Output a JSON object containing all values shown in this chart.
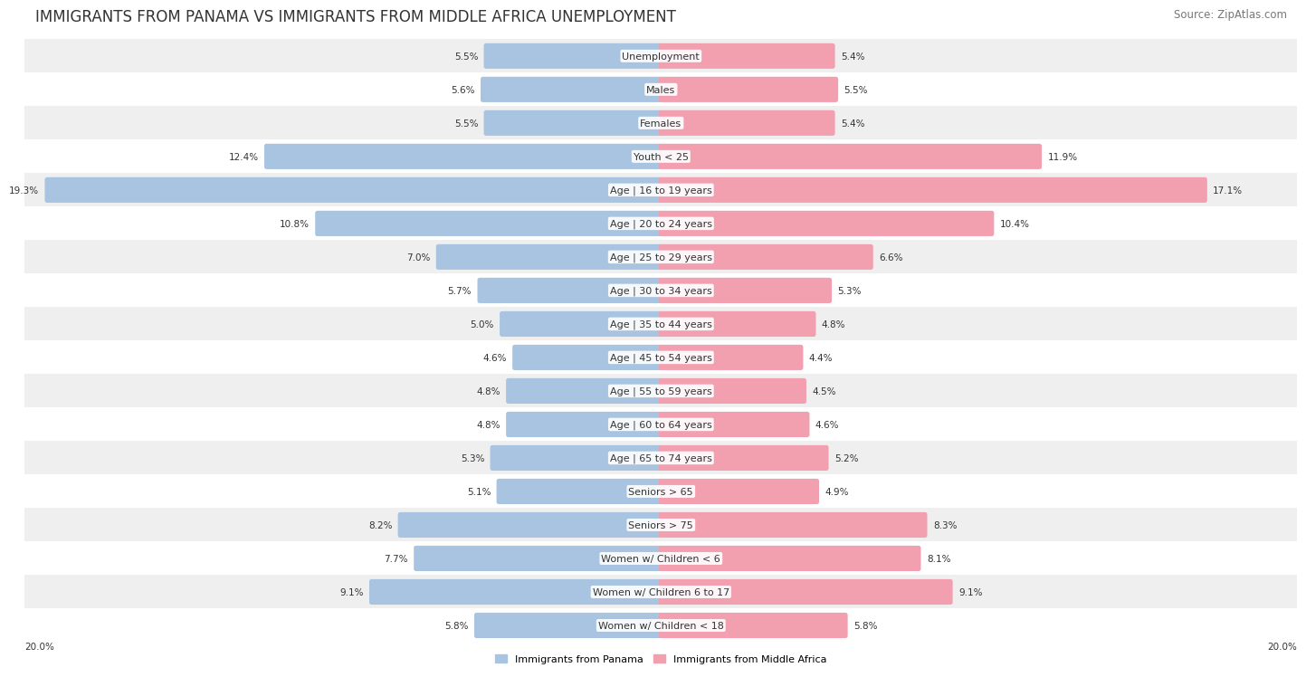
{
  "title": "IMMIGRANTS FROM PANAMA VS IMMIGRANTS FROM MIDDLE AFRICA UNEMPLOYMENT",
  "source": "Source: ZipAtlas.com",
  "categories": [
    "Unemployment",
    "Males",
    "Females",
    "Youth < 25",
    "Age | 16 to 19 years",
    "Age | 20 to 24 years",
    "Age | 25 to 29 years",
    "Age | 30 to 34 years",
    "Age | 35 to 44 years",
    "Age | 45 to 54 years",
    "Age | 55 to 59 years",
    "Age | 60 to 64 years",
    "Age | 65 to 74 years",
    "Seniors > 65",
    "Seniors > 75",
    "Women w/ Children < 6",
    "Women w/ Children 6 to 17",
    "Women w/ Children < 18"
  ],
  "panama_values": [
    5.5,
    5.6,
    5.5,
    12.4,
    19.3,
    10.8,
    7.0,
    5.7,
    5.0,
    4.6,
    4.8,
    4.8,
    5.3,
    5.1,
    8.2,
    7.7,
    9.1,
    5.8
  ],
  "africa_values": [
    5.4,
    5.5,
    5.4,
    11.9,
    17.1,
    10.4,
    6.6,
    5.3,
    4.8,
    4.4,
    4.5,
    4.6,
    5.2,
    4.9,
    8.3,
    8.1,
    9.1,
    5.8
  ],
  "panama_color": "#a8c4e0",
  "africa_color": "#f2a0b0",
  "panama_label": "Immigrants from Panama",
  "africa_label": "Immigrants from Middle Africa",
  "axis_max": 20.0,
  "bg_color": "#ffffff",
  "row_bg_even": "#efefef",
  "row_bg_odd": "#ffffff",
  "title_fontsize": 12,
  "source_fontsize": 8.5,
  "label_fontsize": 8,
  "value_fontsize": 7.5
}
